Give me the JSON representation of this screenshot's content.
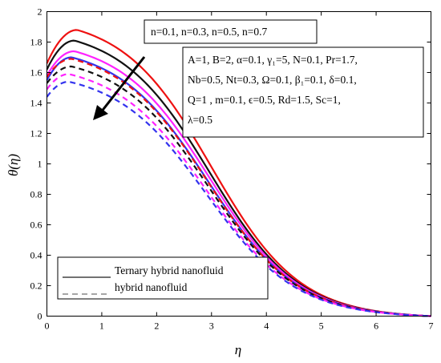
{
  "chart_data": {
    "type": "line",
    "xlabel": "η",
    "ylabel": "θ(η)",
    "xlim": [
      0,
      7
    ],
    "ylim": [
      0,
      2
    ],
    "xticks": [
      "0",
      "1",
      "2",
      "3",
      "4",
      "5",
      "6",
      "7"
    ],
    "yticks": [
      "0",
      "0.2",
      "0.4",
      "0.6",
      "0.8",
      "1",
      "1.2",
      "1.4",
      "1.6",
      "1.8",
      "2"
    ],
    "grid": false,
    "legend_position": "bottom-left",
    "legend": [
      {
        "label": "Ternary hybrid nanofluid",
        "style": "solid"
      },
      {
        "label": "hybrid nanofluid",
        "style": "dashed"
      }
    ],
    "annotation_top": "n=0.1, n=0.3, n=0.5, n=0.7",
    "annotation_params": [
      "A=1, B=2, α=0.1, γ₁=5, N=0.1, Pr=1.7,",
      "Nb=0.5, Nt=0.3, Ω=0.1, β₁=0.1, δ=0.1,",
      "Q=1 , m=0.1, ϵ=0.5, Rd=1.5, Sc=1,",
      "λ=0.5"
    ],
    "series": [
      {
        "color": "#ee1111",
        "style": "solid",
        "y0": 1.66,
        "peak": 1.88,
        "xpeak": 0.55
      },
      {
        "color": "#111111",
        "style": "solid",
        "y0": 1.62,
        "peak": 1.81,
        "xpeak": 0.5
      },
      {
        "color": "#ff22ff",
        "style": "solid",
        "y0": 1.58,
        "peak": 1.74,
        "xpeak": 0.5
      },
      {
        "color": "#3333ee",
        "style": "solid",
        "y0": 1.55,
        "peak": 1.7,
        "xpeak": 0.45
      },
      {
        "color": "#ee1111",
        "style": "dashed",
        "y0": 1.57,
        "peak": 1.69,
        "xpeak": 0.45
      },
      {
        "color": "#111111",
        "style": "dashed",
        "y0": 1.53,
        "peak": 1.64,
        "xpeak": 0.45
      },
      {
        "color": "#ff22ff",
        "style": "dashed",
        "y0": 1.49,
        "peak": 1.59,
        "xpeak": 0.4
      },
      {
        "color": "#3333ee",
        "style": "dashed",
        "y0": 1.44,
        "peak": 1.54,
        "xpeak": 0.4
      }
    ],
    "arrow_color": "#000000"
  }
}
